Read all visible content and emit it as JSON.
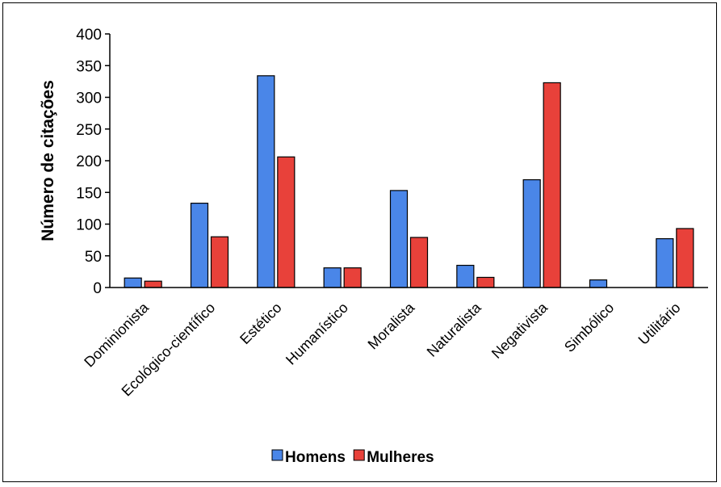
{
  "chart_data": {
    "type": "bar",
    "categories": [
      "Dominionista",
      "Ecológico-científico",
      "Estético",
      "Humanístico",
      "Moralista",
      "Naturalista",
      "Negativista",
      "Simbólico",
      "Utilitário"
    ],
    "series": [
      {
        "name": "Homens",
        "values": [
          15,
          133,
          334,
          31,
          153,
          35,
          170,
          12,
          77
        ],
        "color": "#4A86E8"
      },
      {
        "name": "Mulheres",
        "values": [
          10,
          80,
          206,
          31,
          79,
          16,
          323,
          0,
          93
        ],
        "color": "#E8413A"
      }
    ],
    "title": "",
    "xlabel": "",
    "ylabel": "Número de citações",
    "ylim": [
      0,
      400
    ],
    "yticks": [
      0,
      50,
      100,
      150,
      200,
      250,
      300,
      350,
      400
    ],
    "grid": false,
    "legend_position": "bottom"
  }
}
